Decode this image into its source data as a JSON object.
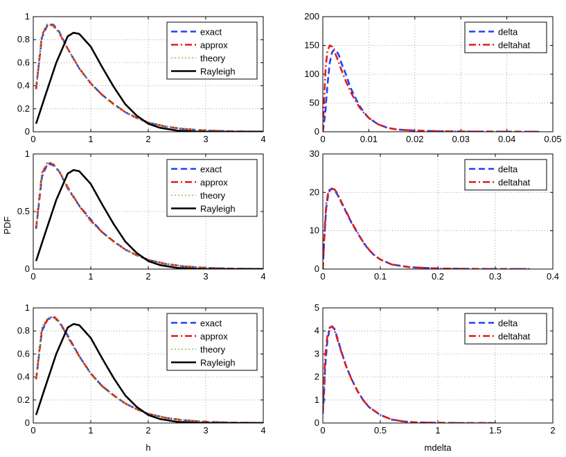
{
  "figure": {
    "ylabel_shared": "PDF",
    "xlabel_left": "h",
    "xlabel_right": "mdelta"
  },
  "colors": {
    "exact": "#1f3fff",
    "approx": "#e31a1a",
    "theory": "#7ecb3a",
    "rayleigh": "#000000",
    "delta": "#1f3fff",
    "deltahat": "#e31a1a"
  },
  "chart_data": [
    {
      "type": "line",
      "id": "h1",
      "xlim": [
        0,
        4
      ],
      "ylim": [
        0,
        1
      ],
      "xticks": [
        0,
        1,
        2,
        3,
        4
      ],
      "yticks": [
        0,
        0.2,
        0.4,
        0.6,
        0.8,
        1
      ],
      "grid": true,
      "legend_position": "top-right",
      "series": [
        {
          "name": "exact",
          "style": "dashed",
          "x": [
            0.05,
            0.15,
            0.25,
            0.35,
            0.45,
            0.6,
            0.8,
            1.0,
            1.2,
            1.4,
            1.6,
            1.8,
            2.0,
            2.3,
            2.6,
            3.0,
            3.5,
            4.0
          ],
          "y": [
            0.38,
            0.82,
            0.93,
            0.93,
            0.87,
            0.72,
            0.55,
            0.42,
            0.32,
            0.24,
            0.17,
            0.12,
            0.08,
            0.045,
            0.025,
            0.01,
            0.003,
            0.001
          ]
        },
        {
          "name": "approx",
          "style": "dashdot",
          "x": [
            0.05,
            0.15,
            0.25,
            0.35,
            0.45,
            0.6,
            0.8,
            1.0,
            1.2,
            1.4,
            1.6,
            1.8,
            2.0,
            2.3,
            2.6,
            3.0,
            3.5,
            4.0
          ],
          "y": [
            0.37,
            0.84,
            0.94,
            0.92,
            0.86,
            0.72,
            0.55,
            0.42,
            0.32,
            0.24,
            0.17,
            0.12,
            0.08,
            0.045,
            0.025,
            0.01,
            0.003,
            0.001
          ]
        },
        {
          "name": "theory",
          "style": "dotted",
          "x": [
            0.05,
            0.15,
            0.25,
            0.35,
            0.45,
            0.6,
            0.8,
            1.0,
            1.2,
            1.4,
            1.6,
            1.8,
            2.0,
            2.3,
            2.6,
            3.0,
            3.5,
            4.0
          ],
          "y": [
            0.4,
            0.85,
            0.94,
            0.92,
            0.86,
            0.71,
            0.55,
            0.41,
            0.31,
            0.23,
            0.17,
            0.12,
            0.08,
            0.045,
            0.025,
            0.01,
            0.003,
            0.001
          ]
        },
        {
          "name": "Rayleigh",
          "style": "solid",
          "x": [
            0.05,
            0.2,
            0.4,
            0.6,
            0.7,
            0.8,
            1.0,
            1.2,
            1.4,
            1.6,
            1.8,
            2.0,
            2.2,
            2.5,
            2.8,
            3.2,
            3.6,
            4.0
          ],
          "y": [
            0.07,
            0.3,
            0.6,
            0.83,
            0.86,
            0.85,
            0.74,
            0.56,
            0.39,
            0.24,
            0.14,
            0.07,
            0.035,
            0.01,
            0.002,
            0.0,
            0.0,
            0.0
          ]
        }
      ]
    },
    {
      "type": "line",
      "id": "d1",
      "xlim": [
        0,
        0.05
      ],
      "ylim": [
        0,
        200
      ],
      "xticks": [
        0,
        0.01,
        0.02,
        0.03,
        0.04,
        0.05
      ],
      "yticks": [
        0,
        50,
        100,
        150,
        200
      ],
      "grid": true,
      "legend_position": "top-right",
      "series": [
        {
          "name": "delta",
          "style": "dashed",
          "x": [
            0.0,
            0.0005,
            0.001,
            0.0015,
            0.002,
            0.0025,
            0.003,
            0.0035,
            0.004,
            0.005,
            0.006,
            0.007,
            0.008,
            0.009,
            0.01,
            0.012,
            0.014,
            0.016,
            0.02,
            0.025,
            0.03,
            0.04,
            0.047
          ],
          "y": [
            0,
            30,
            80,
            120,
            138,
            143,
            140,
            133,
            120,
            100,
            77,
            60,
            45,
            33,
            24,
            13,
            7,
            4,
            2,
            1,
            0.5,
            0.2,
            0
          ]
        },
        {
          "name": "deltahat",
          "style": "dashdot",
          "x": [
            0.0,
            0.0003,
            0.0006,
            0.001,
            0.0015,
            0.002,
            0.0025,
            0.003,
            0.0035,
            0.004,
            0.005,
            0.006,
            0.007,
            0.008,
            0.009,
            0.01,
            0.012,
            0.014,
            0.016,
            0.02,
            0.025,
            0.03,
            0.04,
            0.047
          ],
          "y": [
            0,
            60,
            110,
            140,
            150,
            148,
            140,
            130,
            120,
            108,
            88,
            70,
            55,
            42,
            32,
            24,
            13,
            7,
            4,
            2,
            1,
            0.5,
            0.2,
            0
          ]
        }
      ]
    },
    {
      "type": "line",
      "id": "h2",
      "xlim": [
        0,
        4
      ],
      "ylim": [
        0,
        1
      ],
      "xticks": [
        0,
        1,
        2,
        3,
        4
      ],
      "yticks": [
        0,
        0.5,
        1
      ],
      "grid": true,
      "legend_position": "top-right",
      "series": [
        {
          "name": "exact",
          "style": "dashed",
          "x": [
            0.05,
            0.15,
            0.25,
            0.35,
            0.45,
            0.6,
            0.8,
            1.0,
            1.2,
            1.4,
            1.6,
            1.8,
            2.0,
            2.3,
            2.6,
            3.0,
            3.5,
            4.0
          ],
          "y": [
            0.35,
            0.8,
            0.92,
            0.9,
            0.85,
            0.7,
            0.55,
            0.43,
            0.32,
            0.24,
            0.17,
            0.12,
            0.08,
            0.045,
            0.025,
            0.01,
            0.003,
            0.001
          ]
        },
        {
          "name": "approx",
          "style": "dashdot",
          "x": [
            0.05,
            0.15,
            0.25,
            0.35,
            0.45,
            0.6,
            0.8,
            1.0,
            1.2,
            1.4,
            1.6,
            1.8,
            2.0,
            2.3,
            2.6,
            3.0,
            3.5,
            4.0
          ],
          "y": [
            0.36,
            0.83,
            0.93,
            0.91,
            0.85,
            0.71,
            0.55,
            0.42,
            0.32,
            0.24,
            0.17,
            0.12,
            0.08,
            0.045,
            0.025,
            0.01,
            0.003,
            0.001
          ]
        },
        {
          "name": "theory",
          "style": "dotted",
          "x": [
            0.05,
            0.15,
            0.25,
            0.35,
            0.45,
            0.6,
            0.8,
            1.0,
            1.2,
            1.4,
            1.6,
            1.8,
            2.0,
            2.3,
            2.6,
            3.0,
            3.5,
            4.0
          ],
          "y": [
            0.38,
            0.84,
            0.93,
            0.91,
            0.85,
            0.7,
            0.54,
            0.41,
            0.31,
            0.23,
            0.17,
            0.12,
            0.08,
            0.045,
            0.025,
            0.01,
            0.003,
            0.001
          ]
        },
        {
          "name": "Rayleigh",
          "style": "solid",
          "x": [
            0.05,
            0.2,
            0.4,
            0.6,
            0.7,
            0.8,
            1.0,
            1.2,
            1.4,
            1.6,
            1.8,
            2.0,
            2.2,
            2.5,
            2.8,
            3.2,
            3.6,
            4.0
          ],
          "y": [
            0.07,
            0.3,
            0.6,
            0.83,
            0.86,
            0.85,
            0.74,
            0.56,
            0.39,
            0.24,
            0.14,
            0.07,
            0.035,
            0.01,
            0.002,
            0.0,
            0.0,
            0.0
          ]
        }
      ]
    },
    {
      "type": "line",
      "id": "d2",
      "xlim": [
        0,
        0.4
      ],
      "ylim": [
        0,
        30
      ],
      "xticks": [
        0,
        0.1,
        0.2,
        0.3,
        0.4
      ],
      "yticks": [
        0,
        10,
        20,
        30
      ],
      "grid": true,
      "legend_position": "top-right",
      "series": [
        {
          "name": "delta",
          "style": "dashed",
          "x": [
            0.0,
            0.003,
            0.006,
            0.01,
            0.015,
            0.02,
            0.025,
            0.03,
            0.04,
            0.05,
            0.06,
            0.07,
            0.08,
            0.09,
            0.1,
            0.12,
            0.15,
            0.2,
            0.25,
            0.3,
            0.36
          ],
          "y": [
            0,
            9,
            16,
            20,
            21,
            20.5,
            19.5,
            18,
            15,
            12,
            9.5,
            7,
            5,
            3.5,
            2.5,
            1.2,
            0.5,
            0.15,
            0.05,
            0.02,
            0
          ]
        },
        {
          "name": "deltahat",
          "style": "dashdot",
          "x": [
            0.0,
            0.003,
            0.006,
            0.01,
            0.015,
            0.02,
            0.025,
            0.03,
            0.04,
            0.05,
            0.06,
            0.07,
            0.08,
            0.09,
            0.1,
            0.12,
            0.15,
            0.2,
            0.25,
            0.3,
            0.36
          ],
          "y": [
            0,
            10,
            17,
            20.5,
            21,
            20.8,
            19.8,
            18.2,
            15.2,
            12.2,
            9.6,
            7.1,
            5.1,
            3.6,
            2.5,
            1.2,
            0.5,
            0.15,
            0.05,
            0.02,
            0
          ]
        }
      ]
    },
    {
      "type": "line",
      "id": "h3",
      "xlim": [
        0,
        4
      ],
      "ylim": [
        0,
        1
      ],
      "xticks": [
        0,
        1,
        2,
        3,
        4
      ],
      "yticks": [
        0,
        0.2,
        0.4,
        0.6,
        0.8,
        1
      ],
      "grid": true,
      "legend_position": "top-right",
      "series": [
        {
          "name": "exact",
          "style": "dashed",
          "x": [
            0.05,
            0.15,
            0.25,
            0.35,
            0.45,
            0.6,
            0.8,
            1.0,
            1.2,
            1.4,
            1.6,
            1.8,
            2.0,
            2.3,
            2.6,
            3.0,
            3.5,
            4.0
          ],
          "y": [
            0.38,
            0.8,
            0.9,
            0.92,
            0.88,
            0.76,
            0.58,
            0.43,
            0.32,
            0.24,
            0.17,
            0.12,
            0.08,
            0.045,
            0.025,
            0.01,
            0.003,
            0.001
          ]
        },
        {
          "name": "approx",
          "style": "dashdot",
          "x": [
            0.05,
            0.15,
            0.25,
            0.35,
            0.45,
            0.6,
            0.8,
            1.0,
            1.2,
            1.4,
            1.6,
            1.8,
            2.0,
            2.3,
            2.6,
            3.0,
            3.5,
            4.0
          ],
          "y": [
            0.38,
            0.82,
            0.9,
            0.93,
            0.88,
            0.75,
            0.58,
            0.43,
            0.32,
            0.24,
            0.17,
            0.12,
            0.08,
            0.045,
            0.025,
            0.01,
            0.003,
            0.001
          ]
        },
        {
          "name": "theory",
          "style": "dotted",
          "x": [
            0.05,
            0.15,
            0.25,
            0.35,
            0.45,
            0.6,
            0.8,
            1.0,
            1.2,
            1.4,
            1.6,
            1.8,
            2.0,
            2.3,
            2.6,
            3.0,
            3.5,
            4.0
          ],
          "y": [
            0.4,
            0.84,
            0.92,
            0.92,
            0.87,
            0.74,
            0.57,
            0.42,
            0.31,
            0.23,
            0.17,
            0.12,
            0.08,
            0.045,
            0.025,
            0.01,
            0.003,
            0.001
          ]
        },
        {
          "name": "Rayleigh",
          "style": "solid",
          "x": [
            0.05,
            0.2,
            0.4,
            0.6,
            0.7,
            0.8,
            1.0,
            1.2,
            1.4,
            1.6,
            1.8,
            2.0,
            2.2,
            2.5,
            2.8,
            3.2,
            3.6,
            4.0
          ],
          "y": [
            0.07,
            0.3,
            0.6,
            0.83,
            0.86,
            0.85,
            0.74,
            0.56,
            0.39,
            0.24,
            0.14,
            0.07,
            0.035,
            0.01,
            0.002,
            0.0,
            0.0,
            0.0
          ]
        }
      ]
    },
    {
      "type": "line",
      "id": "d3",
      "xlim": [
        0,
        2
      ],
      "ylim": [
        0,
        5
      ],
      "xticks": [
        0,
        0.5,
        1,
        1.5,
        2
      ],
      "yticks": [
        0,
        1,
        2,
        3,
        4,
        5
      ],
      "grid": true,
      "legend_position": "top-right",
      "series": [
        {
          "name": "delta",
          "style": "dashed",
          "x": [
            0.0,
            0.01,
            0.02,
            0.04,
            0.06,
            0.08,
            0.1,
            0.12,
            0.15,
            0.2,
            0.25,
            0.3,
            0.35,
            0.4,
            0.5,
            0.6,
            0.7,
            0.8,
            1.0,
            1.2,
            1.5
          ],
          "y": [
            0.4,
            1.2,
            2.4,
            3.6,
            4.1,
            4.2,
            4.1,
            3.8,
            3.3,
            2.5,
            1.9,
            1.4,
            1.0,
            0.7,
            0.35,
            0.15,
            0.07,
            0.03,
            0.01,
            0.0,
            0.0
          ]
        },
        {
          "name": "deltahat",
          "style": "dashdot",
          "x": [
            0.0,
            0.01,
            0.02,
            0.04,
            0.06,
            0.08,
            0.1,
            0.12,
            0.15,
            0.2,
            0.25,
            0.3,
            0.35,
            0.4,
            0.5,
            0.6,
            0.7,
            0.8,
            1.0,
            1.2,
            1.5
          ],
          "y": [
            0.5,
            1.6,
            2.9,
            3.8,
            4.15,
            4.2,
            4.05,
            3.75,
            3.25,
            2.5,
            1.9,
            1.4,
            1.0,
            0.7,
            0.35,
            0.15,
            0.07,
            0.03,
            0.01,
            0.0,
            0.0
          ]
        }
      ]
    }
  ]
}
